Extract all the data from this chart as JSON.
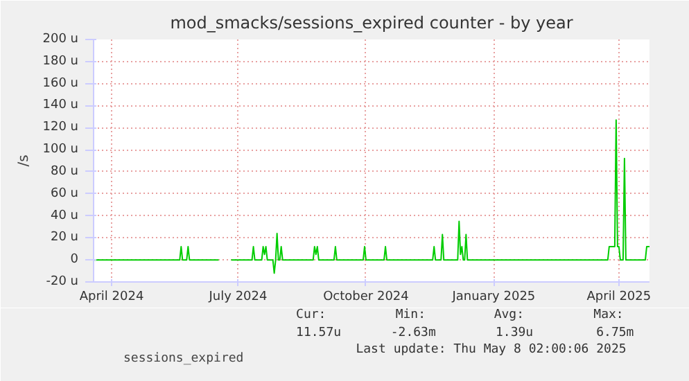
{
  "chart_data": {
    "type": "line",
    "title": "mod_smacks/sessions_expired counter - by year",
    "ylabel": "/s",
    "xlim": [
      "2024-04-03",
      "2025-05-08"
    ],
    "xticks": [
      {
        "value": "2024-04-16",
        "label": "April 2024"
      },
      {
        "value": "2024-07-16",
        "label": "July 2024"
      },
      {
        "value": "2024-10-16",
        "label": "October 2024"
      },
      {
        "value": "2025-01-16",
        "label": "January 2025"
      },
      {
        "value": "2025-04-16",
        "label": "April 2025"
      }
    ],
    "ylim": [
      -20,
      200
    ],
    "yticks": [
      {
        "value": -20,
        "label": "-20 u"
      },
      {
        "value": 0,
        "label": "0"
      },
      {
        "value": 20,
        "label": "20 u"
      },
      {
        "value": 40,
        "label": "40 u"
      },
      {
        "value": 60,
        "label": "60 u"
      },
      {
        "value": 80,
        "label": "80 u"
      },
      {
        "value": 100,
        "label": "100 u"
      },
      {
        "value": 120,
        "label": "120 u"
      },
      {
        "value": 140,
        "label": "140 u"
      },
      {
        "value": 160,
        "label": "160 u"
      },
      {
        "value": 180,
        "label": "180 u"
      },
      {
        "value": 200,
        "label": "200 u"
      }
    ],
    "grid": true,
    "legend": "bottom",
    "line_style": "solid",
    "series": [
      {
        "name": "sessions_expired",
        "color": "#00cc00",
        "x": [
          "2024-04-03",
          "2024-06-04",
          "2024-06-05",
          "2024-06-06",
          "2024-06-09",
          "2024-06-10",
          "2024-06-11",
          "2024-07-02",
          "2024-07-06",
          "2024-07-11",
          "2024-07-26",
          "2024-07-27",
          "2024-07-28",
          "2024-08-02",
          "2024-08-03",
          "2024-08-04",
          "2024-08-05",
          "2024-08-06",
          "2024-08-10",
          "2024-08-11",
          "2024-08-12",
          "2024-08-13",
          "2024-08-14",
          "2024-08-15",
          "2024-08-16",
          "2024-08-17",
          "2024-09-08",
          "2024-09-09",
          "2024-09-10",
          "2024-09-11",
          "2024-09-12",
          "2024-09-23",
          "2024-09-24",
          "2024-09-25",
          "2024-10-14",
          "2024-10-15",
          "2024-10-16",
          "2024-10-29",
          "2024-10-30",
          "2024-10-31",
          "2024-12-03",
          "2024-12-04",
          "2024-12-05",
          "2024-12-09",
          "2024-12-10",
          "2024-12-11",
          "2024-12-21",
          "2024-12-22",
          "2024-12-23",
          "2024-12-24",
          "2024-12-25",
          "2024-12-26",
          "2024-12-27",
          "2024-12-28",
          "2025-04-08",
          "2025-04-09",
          "2025-04-11",
          "2025-04-13",
          "2025-04-14",
          "2025-04-15",
          "2025-04-16",
          "2025-04-17",
          "2025-04-19",
          "2025-04-20",
          "2025-04-21",
          "2025-05-05",
          "2025-05-06",
          "2025-05-08"
        ],
        "values": [
          0,
          0,
          12,
          0,
          0,
          12,
          0,
          0,
          null,
          0,
          0,
          12,
          0,
          0,
          12,
          5,
          12,
          0,
          0,
          -12,
          0,
          24,
          0,
          0,
          12,
          0,
          0,
          12,
          5,
          12,
          0,
          0,
          12,
          0,
          0,
          12,
          0,
          0,
          12,
          0,
          0,
          12,
          0,
          0,
          23,
          0,
          0,
          35,
          5,
          12,
          0,
          0,
          23,
          0,
          0,
          12,
          12,
          12,
          127,
          12,
          12,
          0,
          0,
          92,
          0,
          0,
          12,
          12
        ]
      }
    ],
    "annotations": [
      "Cur:",
      "Min:",
      "Avg:",
      "Max:",
      "11.57u",
      "-2.63m",
      "1.39u",
      "6.75m",
      "Last update: Thu May  8 02:00:06 2025"
    ]
  }
}
